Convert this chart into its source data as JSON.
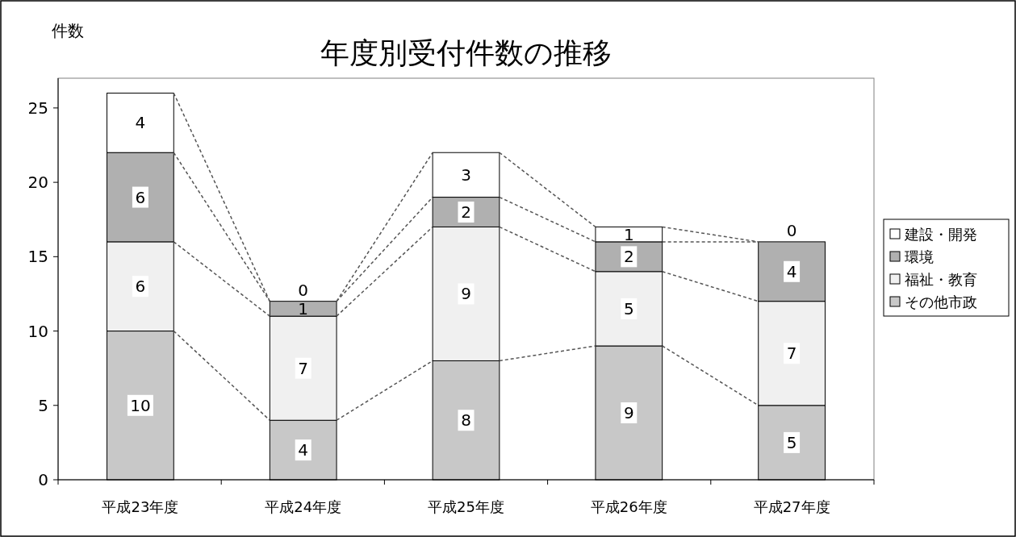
{
  "chart_data": {
    "type": "bar",
    "title": "年度別受付件数の推移",
    "ylabel": "件数",
    "categories": [
      "平成23年度",
      "平成24年度",
      "平成25年度",
      "平成26年度",
      "平成27年度"
    ],
    "stacked": true,
    "data_labels": true,
    "legend": "right",
    "ylim": [
      0,
      27
    ],
    "yticks": [
      0,
      5,
      10,
      15,
      20,
      25
    ],
    "grid": false,
    "series": [
      {
        "name": "その他市政",
        "color": "#c8c8c8",
        "values": [
          10,
          4,
          8,
          9,
          5
        ]
      },
      {
        "name": "福祉・教育",
        "color": "#f0f0f0",
        "values": [
          6,
          7,
          9,
          5,
          7
        ]
      },
      {
        "name": "環境",
        "color": "#b0b0b0",
        "values": [
          6,
          1,
          2,
          2,
          4
        ]
      },
      {
        "name": "建設・開発",
        "color": "#ffffff",
        "values": [
          4,
          0,
          3,
          1,
          0
        ]
      }
    ]
  }
}
